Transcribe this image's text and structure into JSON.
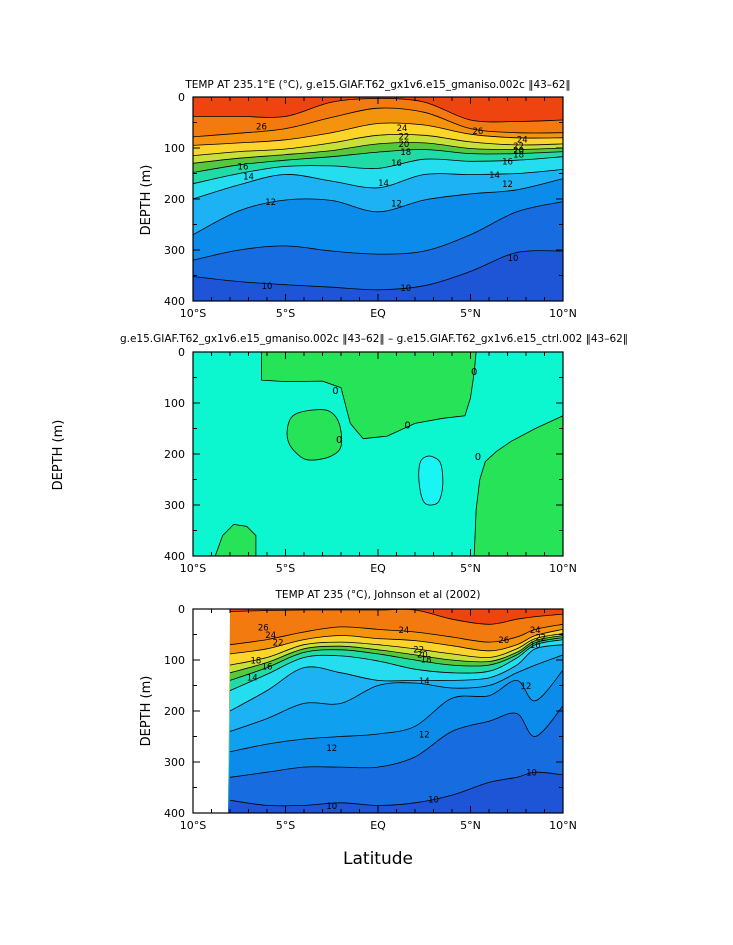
{
  "chart_data": [
    {
      "type": "contour",
      "id": "model",
      "title": "TEMP AT 235.1°E (°C), g.e15.GIAF.T62_gx1v6.e15_gmaniso.002c ‖43–62‖",
      "ylabel": "DEPTH (m)",
      "xlabel": "",
      "x_range_deg": [
        -10,
        10
      ],
      "y_range_m": [
        0,
        400
      ],
      "x_ticks": [
        "10°S",
        "5°S",
        "EQ",
        "5°N",
        "10°N"
      ],
      "y_ticks": [
        "0",
        "100",
        "200",
        "300",
        "400"
      ],
      "contour_interval": 1,
      "data_x_start": -10,
      "latitudes": [
        -10,
        -7.5,
        -5,
        -2.5,
        0,
        2.5,
        5,
        7.5,
        10
      ],
      "isotherms": [
        {
          "t": 27,
          "depth": [
            38,
            38,
            38,
            10,
            3,
            10,
            45,
            48,
            45
          ]
        },
        {
          "t": 26,
          "depth": [
            78,
            71,
            62,
            40,
            22,
            30,
            62,
            70,
            70
          ]
        },
        {
          "t": 24,
          "depth": [
            95,
            90,
            84,
            70,
            52,
            55,
            73,
            80,
            80
          ]
        },
        {
          "t": 22,
          "depth": [
            115,
            107,
            102,
            90,
            75,
            75,
            88,
            94,
            92
          ]
        },
        {
          "t": 20,
          "depth": [
            130,
            120,
            113,
            105,
            92,
            90,
            101,
            103,
            100
          ]
        },
        {
          "t": 18,
          "depth": [
            148,
            133,
            124,
            117,
            108,
            103,
            111,
            111,
            107
          ]
        },
        {
          "t": 16,
          "depth": [
            170,
            150,
            136,
            135,
            140,
            122,
            126,
            124,
            117
          ]
        },
        {
          "t": 14,
          "depth": [
            200,
            172,
            152,
            165,
            178,
            152,
            152,
            150,
            142
          ]
        },
        {
          "t": 12,
          "depth": [
            270,
            223,
            202,
            203,
            225,
            202,
            190,
            182,
            160
          ]
        },
        {
          "t": 11,
          "depth": [
            320,
            300,
            292,
            302,
            308,
            302,
            270,
            225,
            205
          ]
        },
        {
          "t": 10,
          "depth": [
            352,
            362,
            368,
            373,
            378,
            370,
            342,
            305,
            302
          ]
        }
      ],
      "labels": [
        {
          "text": "26",
          "lat": -6.3,
          "d": 57
        },
        {
          "text": "24",
          "lat": 1.3,
          "d": 60
        },
        {
          "text": "24",
          "lat": 7.8,
          "d": 82
        },
        {
          "text": "22",
          "lat": 1.4,
          "d": 76
        },
        {
          "text": "20",
          "lat": 1.4,
          "d": 91
        },
        {
          "text": "18",
          "lat": 1.5,
          "d": 107
        },
        {
          "text": "16",
          "lat": 1.0,
          "d": 128
        },
        {
          "text": "26",
          "lat": 5.4,
          "d": 66
        },
        {
          "text": "22",
          "lat": 7.6,
          "d": 95
        },
        {
          "text": "20",
          "lat": 7.6,
          "d": 104
        },
        {
          "text": "18",
          "lat": 7.6,
          "d": 112
        },
        {
          "text": "16",
          "lat": 7.0,
          "d": 125
        },
        {
          "text": "14",
          "lat": -7.0,
          "d": 155
        },
        {
          "text": "16",
          "lat": -7.3,
          "d": 135
        },
        {
          "text": "14",
          "lat": 0.3,
          "d": 168
        },
        {
          "text": "14",
          "lat": 6.3,
          "d": 152
        },
        {
          "text": "12",
          "lat": -5.8,
          "d": 205
        },
        {
          "text": "12",
          "lat": 1.0,
          "d": 208
        },
        {
          "text": "12",
          "lat": 7.0,
          "d": 170
        },
        {
          "text": "10",
          "lat": -6.0,
          "d": 370
        },
        {
          "text": "10",
          "lat": 1.5,
          "d": 374
        },
        {
          "text": "10",
          "lat": 7.3,
          "d": 315
        }
      ]
    },
    {
      "type": "contour",
      "id": "difference",
      "title": "g.e15.GIAF.T62_gx1v6.e15_gmaniso.002c ‖43–62‖ – g.e15.GIAF.T62_gx1v6.e15_ctrl.002 ‖43–62‖",
      "ylabel": "DEPTH (m)",
      "xlabel": "",
      "x_range_deg": [
        -10,
        10
      ],
      "y_range_m": [
        0,
        400
      ],
      "x_ticks": [
        "10°S",
        "5°S",
        "EQ",
        "5°N",
        "10°N"
      ],
      "y_ticks": [
        "0",
        "100",
        "200",
        "300",
        "400"
      ],
      "background_value_range": "-0.5 to 0",
      "regions": [
        {
          "value": "0 to 0.5",
          "outline": [
            [
              -6.3,
              0
            ],
            [
              -6.3,
              55
            ],
            [
              -5.0,
              58
            ],
            [
              -3.0,
              57
            ],
            [
              -2.0,
              70
            ],
            [
              -1.5,
              140
            ],
            [
              -0.8,
              170
            ],
            [
              0.5,
              165
            ],
            [
              2.0,
              140
            ],
            [
              3.5,
              130
            ],
            [
              4.7,
              125
            ],
            [
              5.0,
              90
            ],
            [
              5.2,
              40
            ],
            [
              5.3,
              0
            ]
          ]
        },
        {
          "value": "0 to 0.5",
          "outline": [
            [
              -4.9,
              150
            ],
            [
              -4.6,
              125
            ],
            [
              -3.8,
              115
            ],
            [
              -2.7,
              115
            ],
            [
              -2.1,
              140
            ],
            [
              -2.0,
              185
            ],
            [
              -2.6,
              205
            ],
            [
              -3.6,
              212
            ],
            [
              -4.2,
              205
            ],
            [
              -4.8,
              180
            ]
          ]
        },
        {
          "value": "0 to 0.5",
          "outline": [
            [
              10,
              125
            ],
            [
              8.5,
              150
            ],
            [
              7.2,
              175
            ],
            [
              6.4,
              195
            ],
            [
              5.8,
              215
            ],
            [
              5.5,
              250
            ],
            [
              5.3,
              310
            ],
            [
              5.2,
              400
            ],
            [
              10,
              400
            ]
          ]
        },
        {
          "value": "0 to 0.5",
          "outline": [
            [
              -8.8,
              400
            ],
            [
              -8.4,
              360
            ],
            [
              -7.8,
              338
            ],
            [
              -7.1,
              342
            ],
            [
              -6.6,
              360
            ],
            [
              -6.6,
              400
            ]
          ]
        }
      ],
      "minus_regions": [
        {
          "value": "-1 to -0.5",
          "outline": [
            [
              2.2,
              240
            ],
            [
              2.3,
              215
            ],
            [
              2.6,
              205
            ],
            [
              3.0,
              206
            ],
            [
              3.4,
              220
            ],
            [
              3.5,
              260
            ],
            [
              3.3,
              292
            ],
            [
              2.9,
              300
            ],
            [
              2.5,
              295
            ],
            [
              2.3,
              275
            ]
          ]
        }
      ],
      "labels": [
        {
          "text": "0",
          "lat": -2.3,
          "d": 75
        },
        {
          "text": "0",
          "lat": -2.1,
          "d": 172
        },
        {
          "text": "0",
          "lat": 1.6,
          "d": 143
        },
        {
          "text": "0",
          "lat": 5.2,
          "d": 38
        },
        {
          "text": "0",
          "lat": 5.4,
          "d": 205
        }
      ]
    },
    {
      "type": "contour",
      "id": "observed",
      "title": "TEMP AT 235 (°C), Johnson et al (2002)",
      "ylabel": "DEPTH (m)",
      "xlabel": "Latitude",
      "x_range_deg": [
        -10,
        10
      ],
      "y_range_m": [
        0,
        400
      ],
      "x_ticks": [
        "10°S",
        "5°S",
        "EQ",
        "5°N",
        "10°N"
      ],
      "y_ticks": [
        "0",
        "100",
        "200",
        "300",
        "400"
      ],
      "contour_interval": 1,
      "data_x_start": -8,
      "latitudes": [
        -8,
        -6,
        -4,
        -2,
        0,
        2,
        4,
        6,
        7.5,
        8.5,
        10
      ],
      "isotherms": [
        {
          "t": 27,
          "depth": [
            5,
            3,
            2,
            2,
            2,
            2,
            20,
            30,
            20,
            15,
            10
          ]
        },
        {
          "t": 26,
          "depth": [
            70,
            60,
            45,
            35,
            40,
            45,
            55,
            65,
            55,
            40,
            30
          ]
        },
        {
          "t": 24,
          "depth": [
            88,
            78,
            60,
            52,
            58,
            62,
            72,
            82,
            70,
            52,
            40
          ]
        },
        {
          "t": 22,
          "depth": [
            110,
            95,
            70,
            65,
            70,
            78,
            88,
            95,
            78,
            58,
            48
          ]
        },
        {
          "t": 20,
          "depth": [
            125,
            105,
            78,
            73,
            80,
            90,
            100,
            103,
            85,
            62,
            52
          ]
        },
        {
          "t": 18,
          "depth": [
            140,
            115,
            85,
            80,
            88,
            100,
            110,
            110,
            90,
            66,
            56
          ]
        },
        {
          "t": 16,
          "depth": [
            160,
            128,
            95,
            92,
            102,
            118,
            125,
            122,
            96,
            70,
            60
          ]
        },
        {
          "t": 14,
          "depth": [
            200,
            160,
            115,
            125,
            140,
            140,
            140,
            135,
            110,
            78,
            70
          ]
        },
        {
          "t": 13,
          "depth": [
            240,
            215,
            185,
            185,
            150,
            145,
            155,
            150,
            125,
            110,
            90
          ]
        },
        {
          "t": 12,
          "depth": [
            280,
            265,
            255,
            250,
            245,
            230,
            175,
            170,
            140,
            180,
            120
          ]
        },
        {
          "t": 11,
          "depth": [
            330,
            320,
            310,
            310,
            310,
            290,
            240,
            220,
            205,
            250,
            190
          ]
        },
        {
          "t": 10,
          "depth": [
            375,
            385,
            385,
            380,
            385,
            380,
            365,
            340,
            330,
            320,
            325
          ]
        }
      ],
      "labels": [
        {
          "text": "26",
          "lat": -6.2,
          "d": 35
        },
        {
          "text": "24",
          "lat": 1.4,
          "d": 40
        },
        {
          "text": "26",
          "lat": 6.8,
          "d": 60
        },
        {
          "text": "24",
          "lat": -5.8,
          "d": 50
        },
        {
          "text": "22",
          "lat": -5.4,
          "d": 65
        },
        {
          "text": "22",
          "lat": 2.2,
          "d": 78
        },
        {
          "text": "20",
          "lat": 2.4,
          "d": 88
        },
        {
          "text": "18",
          "lat": 2.6,
          "d": 98
        },
        {
          "text": "16",
          "lat": -6.0,
          "d": 112
        },
        {
          "text": "18",
          "lat": -6.6,
          "d": 100
        },
        {
          "text": "14",
          "lat": -6.8,
          "d": 133
        },
        {
          "text": "14",
          "lat": 2.5,
          "d": 140
        },
        {
          "text": "12",
          "lat": 8.0,
          "d": 150
        },
        {
          "text": "12",
          "lat": -2.5,
          "d": 272
        },
        {
          "text": "12",
          "lat": 2.5,
          "d": 245
        },
        {
          "text": "10",
          "lat": -2.5,
          "d": 385
        },
        {
          "text": "10",
          "lat": 3.0,
          "d": 373
        },
        {
          "text": "10",
          "lat": 8.3,
          "d": 320
        },
        {
          "text": "24",
          "lat": 8.5,
          "d": 40
        },
        {
          "text": "22",
          "lat": 8.8,
          "d": 55
        },
        {
          "text": "16",
          "lat": 8.5,
          "d": 70
        }
      ]
    }
  ]
}
